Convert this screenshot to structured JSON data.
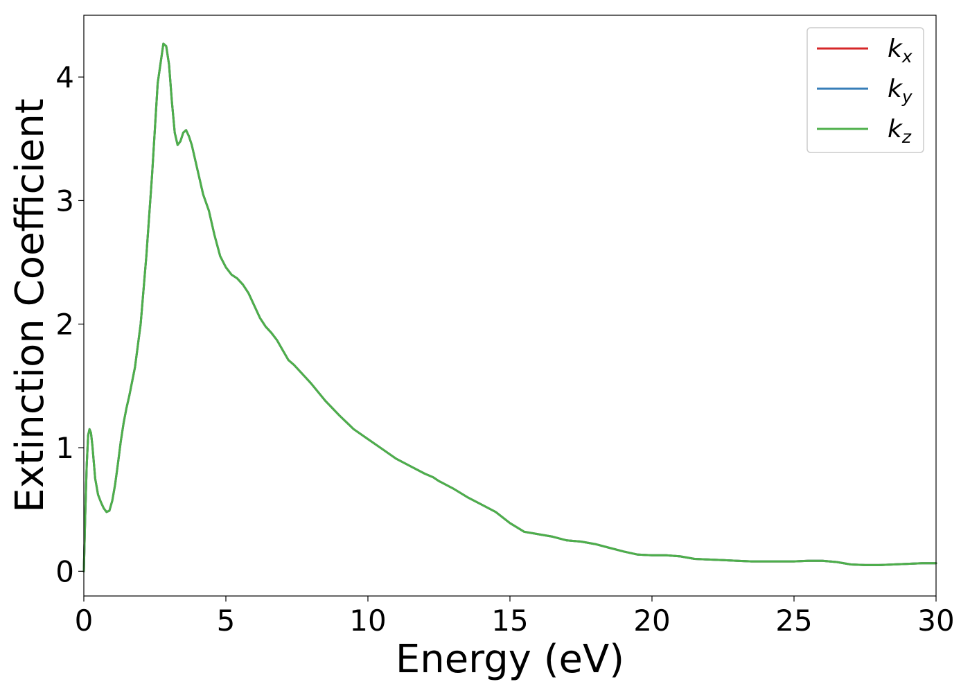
{
  "chart_data": {
    "type": "line",
    "xlabel": "Energy (eV)",
    "ylabel": "Extinction Coefficient",
    "xlim": [
      0,
      30
    ],
    "ylim": [
      -0.2,
      4.5
    ],
    "xticks": [
      0,
      5,
      10,
      15,
      20,
      25,
      30
    ],
    "yticks": [
      0,
      1,
      2,
      3,
      4
    ],
    "xtick_labels": [
      "0",
      "5",
      "10",
      "15",
      "20",
      "25",
      "30"
    ],
    "ytick_labels": [
      "0",
      "1",
      "2",
      "3",
      "4"
    ],
    "grid": false,
    "legend_position": "top-right",
    "x": [
      0,
      0.05,
      0.1,
      0.15,
      0.2,
      0.25,
      0.3,
      0.4,
      0.5,
      0.6,
      0.7,
      0.8,
      0.9,
      1.0,
      1.1,
      1.2,
      1.3,
      1.4,
      1.5,
      1.6,
      1.8,
      2.0,
      2.2,
      2.4,
      2.6,
      2.8,
      2.9,
      3.0,
      3.1,
      3.2,
      3.3,
      3.4,
      3.5,
      3.6,
      3.7,
      3.8,
      4.0,
      4.2,
      4.4,
      4.6,
      4.8,
      5.0,
      5.2,
      5.4,
      5.6,
      5.8,
      6.0,
      6.2,
      6.4,
      6.6,
      6.8,
      7.0,
      7.2,
      7.4,
      7.6,
      7.8,
      8.0,
      8.5,
      9.0,
      9.5,
      10.0,
      10.5,
      11.0,
      11.5,
      12.0,
      12.3,
      12.5,
      13.0,
      13.5,
      14.0,
      14.5,
      15.0,
      15.5,
      16.0,
      16.5,
      17.0,
      17.5,
      18.0,
      18.5,
      19.0,
      19.5,
      20.0,
      20.5,
      21.0,
      21.5,
      22.0,
      22.5,
      23.0,
      23.5,
      24.0,
      24.5,
      25.0,
      25.5,
      26.0,
      26.5,
      27.0,
      27.5,
      28.0,
      28.5,
      29.0,
      29.5,
      30.0
    ],
    "series": [
      {
        "name": "k",
        "subscript": "x",
        "color": "#d62728",
        "values": [
          0,
          0.45,
          0.85,
          1.1,
          1.15,
          1.12,
          1.02,
          0.75,
          0.62,
          0.56,
          0.51,
          0.48,
          0.49,
          0.57,
          0.7,
          0.87,
          1.05,
          1.2,
          1.32,
          1.42,
          1.65,
          2.0,
          2.55,
          3.2,
          3.95,
          4.27,
          4.25,
          4.1,
          3.8,
          3.55,
          3.45,
          3.48,
          3.55,
          3.57,
          3.52,
          3.45,
          3.25,
          3.05,
          2.92,
          2.72,
          2.55,
          2.46,
          2.4,
          2.37,
          2.32,
          2.25,
          2.15,
          2.05,
          1.98,
          1.93,
          1.87,
          1.79,
          1.71,
          1.67,
          1.62,
          1.57,
          1.52,
          1.38,
          1.26,
          1.15,
          1.07,
          0.99,
          0.91,
          0.85,
          0.79,
          0.76,
          0.73,
          0.67,
          0.6,
          0.54,
          0.48,
          0.39,
          0.32,
          0.3,
          0.28,
          0.25,
          0.24,
          0.22,
          0.19,
          0.16,
          0.135,
          0.13,
          0.13,
          0.12,
          0.1,
          0.095,
          0.09,
          0.085,
          0.08,
          0.08,
          0.08,
          0.08,
          0.085,
          0.085,
          0.075,
          0.055,
          0.05,
          0.05,
          0.055,
          0.06,
          0.065,
          0.065
        ]
      },
      {
        "name": "k",
        "subscript": "y",
        "color": "#377eb8",
        "values": [
          0,
          0.45,
          0.85,
          1.1,
          1.15,
          1.12,
          1.02,
          0.75,
          0.62,
          0.56,
          0.51,
          0.48,
          0.49,
          0.57,
          0.7,
          0.87,
          1.05,
          1.2,
          1.32,
          1.42,
          1.65,
          2.0,
          2.55,
          3.2,
          3.95,
          4.27,
          4.25,
          4.1,
          3.8,
          3.55,
          3.45,
          3.48,
          3.55,
          3.57,
          3.52,
          3.45,
          3.25,
          3.05,
          2.92,
          2.72,
          2.55,
          2.46,
          2.4,
          2.37,
          2.32,
          2.25,
          2.15,
          2.05,
          1.98,
          1.93,
          1.87,
          1.79,
          1.71,
          1.67,
          1.62,
          1.57,
          1.52,
          1.38,
          1.26,
          1.15,
          1.07,
          0.99,
          0.91,
          0.85,
          0.79,
          0.76,
          0.73,
          0.67,
          0.6,
          0.54,
          0.48,
          0.39,
          0.32,
          0.3,
          0.28,
          0.25,
          0.24,
          0.22,
          0.19,
          0.16,
          0.135,
          0.13,
          0.13,
          0.12,
          0.1,
          0.095,
          0.09,
          0.085,
          0.08,
          0.08,
          0.08,
          0.08,
          0.085,
          0.085,
          0.075,
          0.055,
          0.05,
          0.05,
          0.055,
          0.06,
          0.065,
          0.065
        ]
      },
      {
        "name": "k",
        "subscript": "z",
        "color": "#4daf4a",
        "values": [
          0,
          0.45,
          0.85,
          1.1,
          1.15,
          1.12,
          1.02,
          0.75,
          0.62,
          0.56,
          0.51,
          0.48,
          0.49,
          0.57,
          0.7,
          0.87,
          1.05,
          1.2,
          1.32,
          1.42,
          1.65,
          2.0,
          2.55,
          3.2,
          3.95,
          4.27,
          4.25,
          4.1,
          3.8,
          3.55,
          3.45,
          3.48,
          3.55,
          3.57,
          3.52,
          3.45,
          3.25,
          3.05,
          2.92,
          2.72,
          2.55,
          2.46,
          2.4,
          2.37,
          2.32,
          2.25,
          2.15,
          2.05,
          1.98,
          1.93,
          1.87,
          1.79,
          1.71,
          1.67,
          1.62,
          1.57,
          1.52,
          1.38,
          1.26,
          1.15,
          1.07,
          0.99,
          0.91,
          0.85,
          0.79,
          0.76,
          0.73,
          0.67,
          0.6,
          0.54,
          0.48,
          0.39,
          0.32,
          0.3,
          0.28,
          0.25,
          0.24,
          0.22,
          0.19,
          0.16,
          0.135,
          0.13,
          0.13,
          0.12,
          0.1,
          0.095,
          0.09,
          0.085,
          0.08,
          0.08,
          0.08,
          0.08,
          0.085,
          0.085,
          0.075,
          0.055,
          0.05,
          0.05,
          0.055,
          0.06,
          0.065,
          0.065
        ]
      }
    ]
  }
}
